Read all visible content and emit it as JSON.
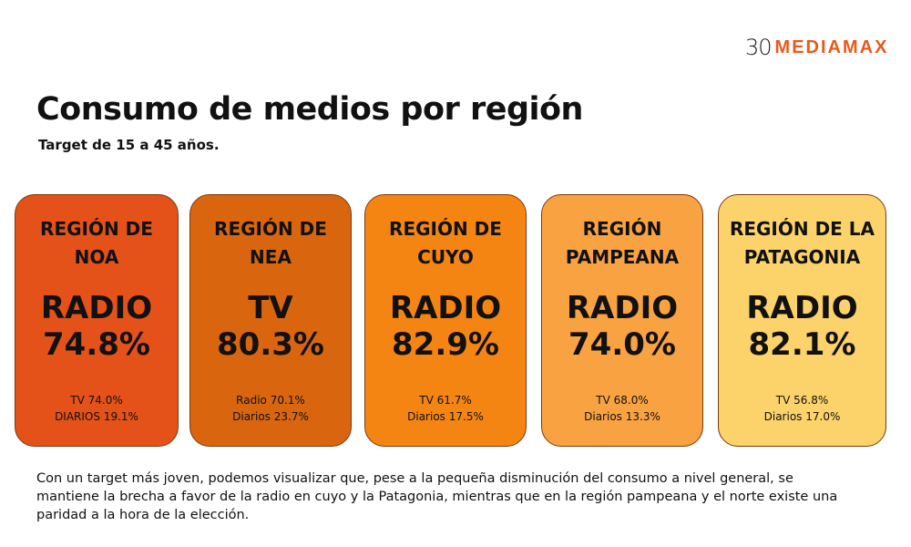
{
  "logo": {
    "number": "30",
    "brand": "MEDIAMAX"
  },
  "title": "Consumo de medios por región",
  "subtitle": "Target de 15 a 45 años.",
  "regions": [
    {
      "region": "REGIÓN DE NOA",
      "medium": "RADIO",
      "value": "74.8%",
      "line1": "TV 74.0%",
      "line2": "DIARIOS 19.1%",
      "color": "#e4521a"
    },
    {
      "region": "REGIÓN DE NEA",
      "medium": "TV",
      "value": "80.3%",
      "line1": "Radio 70.1%",
      "line2": "Diarios 23.7%",
      "color": "#d9660f"
    },
    {
      "region": "REGIÓN DE CUYO",
      "medium": "RADIO",
      "value": "82.9%",
      "line1": "TV 61.7%",
      "line2": "Diarios 17.5%",
      "color": "#f58513"
    },
    {
      "region": "REGIÓN PAMPEANA",
      "medium": "RADIO",
      "value": "74.0%",
      "line1": "TV 68.0%",
      "line2": "Diarios 13.3%",
      "color": "#f9a242"
    },
    {
      "region": "REGIÓN DE LA PATAGONIA",
      "medium": "RADIO",
      "value": "82.1%",
      "line1": "TV 56.8%",
      "line2": "Diarios 17.0%",
      "color": "#fcd26a"
    }
  ],
  "footer": "Con un target más joven, podemos visualizar que, pese a la pequeña disminución del consumo a nivel general, se mantiene la brecha a favor de la radio en cuyo y la Patagonia, mientras que en la región pampeana y el norte existe una paridad a la hora de la elección."
}
